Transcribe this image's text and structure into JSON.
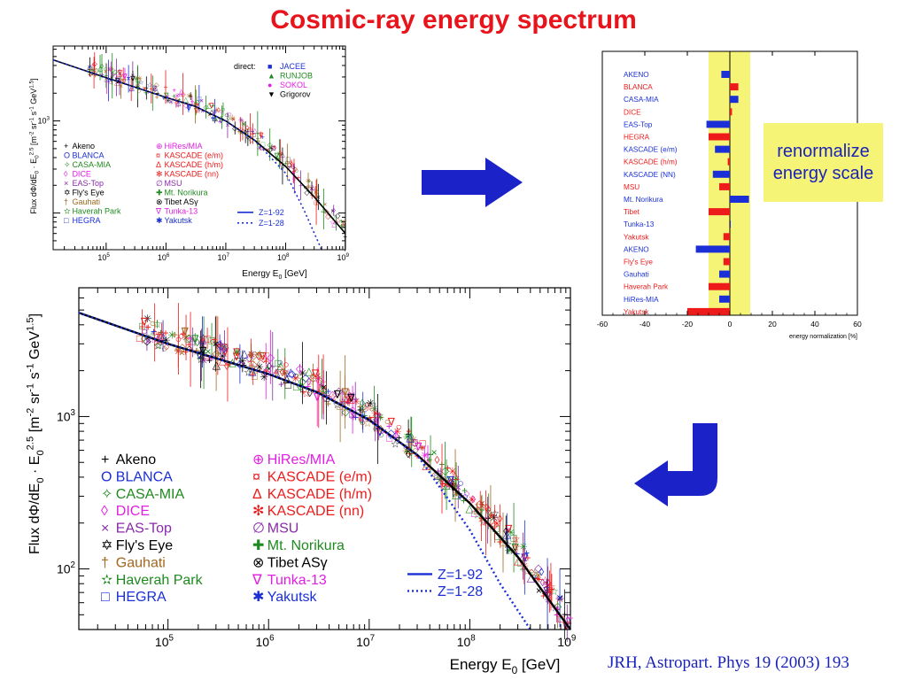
{
  "title": "Cosmic-ray energy spectrum",
  "citation": "JRH, Astropart. Phys 19 (2003) 193",
  "note": "renormalize energy scale",
  "icons": [
    "right-arrow-icon",
    "curved-return-arrow-icon"
  ],
  "colors": {
    "title": "#e8141c",
    "blue_text": "#1a22b8",
    "highlight": "#f6f477",
    "bar_blue": "#1a2fd6",
    "bar_red": "#ee1b1b"
  },
  "direct_legend": {
    "label": "direct:",
    "items": [
      {
        "name": "JACEE",
        "symbol": "■",
        "color": "#1a2fd6"
      },
      {
        "name": "RUNJOB",
        "symbol": "▲",
        "color": "#1f8a1f"
      },
      {
        "name": "SOKOL",
        "symbol": "●",
        "color": "#e11ee1"
      },
      {
        "name": "Grigorov",
        "symbol": "▼",
        "color": "#000000"
      }
    ]
  },
  "experiments_left": [
    {
      "symbol": "+",
      "name": "Akeno",
      "color": "#000000"
    },
    {
      "symbol": "O",
      "name": "BLANCA",
      "color": "#1a2fd6"
    },
    {
      "symbol": "✧",
      "name": "CASA-MIA",
      "color": "#1f8a1f"
    },
    {
      "symbol": "◊",
      "name": "DICE",
      "color": "#e11ee1"
    },
    {
      "symbol": "×",
      "name": "EAS-Top",
      "color": "#8a2aa8"
    },
    {
      "symbol": "✡",
      "name": "Fly's Eye",
      "color": "#000000"
    },
    {
      "symbol": "†",
      "name": "Gauhati",
      "color": "#a0681e"
    },
    {
      "symbol": "✫",
      "name": "Haverah Park",
      "color": "#1f8a1f"
    },
    {
      "symbol": "□",
      "name": "HEGRA",
      "color": "#1a2fd6"
    }
  ],
  "experiments_right": [
    {
      "symbol": "⊕",
      "name": "HiRes/MIA",
      "color": "#e11ee1"
    },
    {
      "symbol": "¤",
      "name": "KASCADE (e/m)",
      "color": "#ee1b1b"
    },
    {
      "symbol": "Δ",
      "name": "KASCADE (h/m)",
      "color": "#ee1b1b"
    },
    {
      "symbol": "✻",
      "name": "KASCADE (nn)",
      "color": "#ee1b1b"
    },
    {
      "symbol": "∅",
      "name": "MSU",
      "color": "#8a2aa8"
    },
    {
      "symbol": "✚",
      "name": "Mt. Norikura",
      "color": "#1f8a1f"
    },
    {
      "symbol": "⊗",
      "name": "Tibet ASγ",
      "color": "#000000"
    },
    {
      "symbol": "∇",
      "name": "Tunka-13",
      "color": "#e11ee1"
    },
    {
      "symbol": "✱",
      "name": "Yakutsk",
      "color": "#1a2fd6"
    }
  ],
  "chart_data": [
    {
      "type": "scatter",
      "subtitle": "small spectrum plot",
      "xlabel": "Energy E0 [GeV]",
      "ylabel": "Flux dΦ/dE0 · E0^2.5 [m^-2 sr^-1 s^-1 GeV^1.5]",
      "xscale": "log",
      "yscale": "log",
      "xlim": [
        13000,
        1000000000
      ],
      "ylim": [
        40,
        6500
      ],
      "x_ticks": [
        "10^5",
        "10^6",
        "10^7",
        "10^8",
        "10^9"
      ],
      "y_ticks": [
        "10^3"
      ],
      "series": [
        {
          "name": "Z=1-92",
          "style": "solid",
          "x": [
            13000,
            100000,
            1000000,
            3000000,
            10000000,
            30000000,
            100000000,
            300000000,
            1000000000
          ],
          "y": [
            4600,
            2950,
            1800,
            1450,
            1000,
            620,
            320,
            150,
            60
          ]
        },
        {
          "name": "Z=1-28",
          "style": "dotted",
          "x": [
            13000,
            100000,
            1000000,
            3000000,
            10000000,
            30000000,
            100000000,
            200000000,
            400000000
          ],
          "y": [
            4600,
            2950,
            1800,
            1450,
            1000,
            620,
            270,
            110,
            40
          ]
        }
      ],
      "grid": false
    },
    {
      "type": "scatter",
      "subtitle": "large spectrum plot",
      "xlabel": "Energy E0 [GeV]",
      "ylabel": "Flux dΦ/dE0 · E0^2.5 [m^-2 sr^-1 s^-1 GeV^1.5]",
      "xscale": "log",
      "yscale": "log",
      "xlim": [
        13000,
        1000000000
      ],
      "ylim": [
        40,
        7000
      ],
      "x_ticks": [
        "10^5",
        "10^6",
        "10^7",
        "10^8",
        "10^9"
      ],
      "y_ticks": [
        "10^2",
        "10^3"
      ],
      "series": [
        {
          "name": "Z=1-92",
          "style": "solid",
          "x": [
            13000,
            100000,
            1000000,
            3000000,
            10000000,
            30000000,
            100000000,
            300000000,
            1000000000
          ],
          "y": [
            4800,
            3000,
            1900,
            1450,
            950,
            560,
            270,
            120,
            40
          ]
        },
        {
          "name": "Z=1-28",
          "style": "dotted",
          "x": [
            13000,
            100000,
            1000000,
            3000000,
            10000000,
            30000000,
            100000000,
            200000000,
            400000000
          ],
          "y": [
            4800,
            3000,
            1900,
            1450,
            950,
            560,
            180,
            80,
            40
          ]
        }
      ],
      "grid": false
    },
    {
      "type": "bar",
      "orientation": "horizontal",
      "xlabel": "energy normalization [%]",
      "xlim": [
        -60,
        60
      ],
      "x_ticks": [
        "-60",
        "-40",
        "-20",
        "0",
        "20",
        "40",
        "60"
      ],
      "highlight_band": [
        -10,
        10
      ],
      "categories": [
        "AKENO",
        "BLANCA",
        "CASA-MIA",
        "DICE",
        "EAS-Top",
        "HEGRA",
        "KASCADE (e/m)",
        "KASCADE (h/m)",
        "KASCADE (NN)",
        "MSU",
        "Mt. Norikura",
        "Tibet",
        "Tunka-13",
        "Yakutsk",
        "AKENO",
        "Fly's Eye",
        "Gauhati",
        "Haverah Park",
        "HiRes-MIA",
        "Yakutsk"
      ],
      "values": [
        -4,
        4,
        4,
        1,
        -11,
        -10,
        -7,
        -1,
        -8,
        -5,
        9,
        -10,
        0,
        -3,
        -16,
        -3,
        -5,
        -10,
        -5,
        -20
      ],
      "bar_colors": [
        "#1a2fd6",
        "#ee1b1b",
        "#1a2fd6",
        "#ee1b1b",
        "#1a2fd6",
        "#ee1b1b",
        "#1a2fd6",
        "#ee1b1b",
        "#1a2fd6",
        "#ee1b1b",
        "#1a2fd6",
        "#ee1b1b",
        "#1a2fd6",
        "#ee1b1b",
        "#1a2fd6",
        "#ee1b1b",
        "#1a2fd6",
        "#ee1b1b",
        "#1a2fd6",
        "#ee1b1b"
      ],
      "grid": false
    }
  ]
}
